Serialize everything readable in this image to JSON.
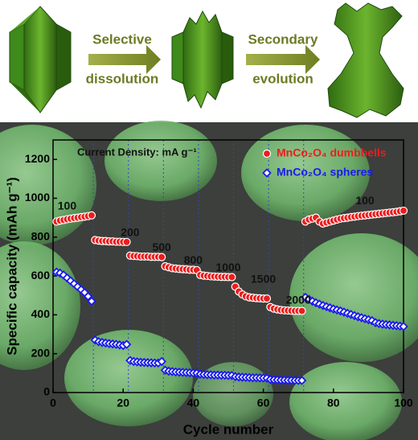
{
  "schematic": {
    "steps": [
      [
        "Selective",
        "dissolution"
      ],
      [
        "Secondary",
        "evolution"
      ]
    ]
  },
  "chart_data": {
    "type": "scatter",
    "x_label": "Cycle number",
    "y_label": "Specific capacity (mAh g⁻¹)",
    "annotations": [
      "Current Density: mA g⁻¹",
      "100",
      "200",
      "500",
      "800",
      "1000",
      "1500",
      "2000",
      "100"
    ],
    "xlim": [
      0,
      100
    ],
    "xticks": [
      0,
      20,
      40,
      60,
      80,
      100
    ],
    "ylim": [
      0,
      1300
    ],
    "yticks": [
      0,
      200,
      400,
      600,
      800,
      1000,
      1200
    ],
    "boundaries": [
      11.5,
      21.5,
      31.5,
      41.5,
      51.5,
      61.5,
      71.5
    ],
    "legend": "upper right",
    "x": [
      1,
      2,
      3,
      4,
      5,
      6,
      7,
      8,
      9,
      10,
      11,
      12,
      13,
      14,
      15,
      16,
      17,
      18,
      19,
      20,
      21,
      22,
      23,
      24,
      25,
      26,
      27,
      28,
      29,
      30,
      31,
      32,
      33,
      34,
      35,
      36,
      37,
      38,
      39,
      40,
      41,
      42,
      43,
      44,
      45,
      46,
      47,
      48,
      49,
      50,
      51,
      52,
      53,
      54,
      55,
      56,
      57,
      58,
      59,
      60,
      61,
      62,
      63,
      64,
      65,
      66,
      67,
      68,
      69,
      70,
      71,
      72,
      73,
      74,
      75,
      76,
      77,
      78,
      79,
      80,
      81,
      82,
      83,
      84,
      85,
      86,
      87,
      88,
      89,
      90,
      91,
      92,
      93,
      94,
      95,
      96,
      97,
      98,
      99,
      100
    ],
    "series": [
      {
        "name": "MnCo₂O₄ dumbbells",
        "color": "#ee1c1c",
        "marker": "circle",
        "values": [
          880,
          885,
          888,
          892,
          895,
          898,
          900,
          903,
          905,
          908,
          912,
          785,
          782,
          780,
          780,
          778,
          778,
          776,
          776,
          775,
          775,
          705,
          703,
          702,
          700,
          700,
          700,
          698,
          698,
          698,
          697,
          650,
          645,
          640,
          638,
          636,
          635,
          634,
          632,
          632,
          630,
          605,
          602,
          600,
          598,
          597,
          596,
          595,
          595,
          594,
          594,
          545,
          520,
          505,
          495,
          490,
          488,
          486,
          485,
          484,
          484,
          440,
          432,
          428,
          425,
          423,
          422,
          421,
          420,
          420,
          420,
          880,
          890,
          895,
          900,
          880,
          870,
          875,
          880,
          885,
          890,
          895,
          898,
          900,
          903,
          905,
          908,
          910,
          912,
          914,
          916,
          918,
          920,
          922,
          924,
          926,
          928,
          930,
          933,
          936
        ]
      },
      {
        "name": "MnCo₂O₄ spheres",
        "color": "#1a1aee",
        "marker": "diamond",
        "values": [
          620,
          615,
          605,
          590,
          575,
          560,
          545,
          530,
          515,
          495,
          470,
          270,
          262,
          258,
          255,
          252,
          250,
          248,
          245,
          242,
          248,
          165,
          160,
          158,
          156,
          155,
          154,
          153,
          152,
          152,
          160,
          115,
          110,
          108,
          106,
          105,
          104,
          103,
          102,
          101,
          100,
          95,
          93,
          92,
          91,
          90,
          90,
          89,
          89,
          88,
          88,
          82,
          80,
          79,
          78,
          77,
          76,
          76,
          75,
          75,
          74,
          68,
          66,
          65,
          64,
          64,
          63,
          63,
          62,
          62,
          62,
          490,
          480,
          470,
          462,
          455,
          448,
          442,
          436,
          430,
          425,
          420,
          414,
          408,
          402,
          396,
          390,
          385,
          380,
          375,
          370,
          360,
          355,
          352,
          350,
          348,
          346,
          344,
          342,
          340
        ]
      }
    ]
  }
}
